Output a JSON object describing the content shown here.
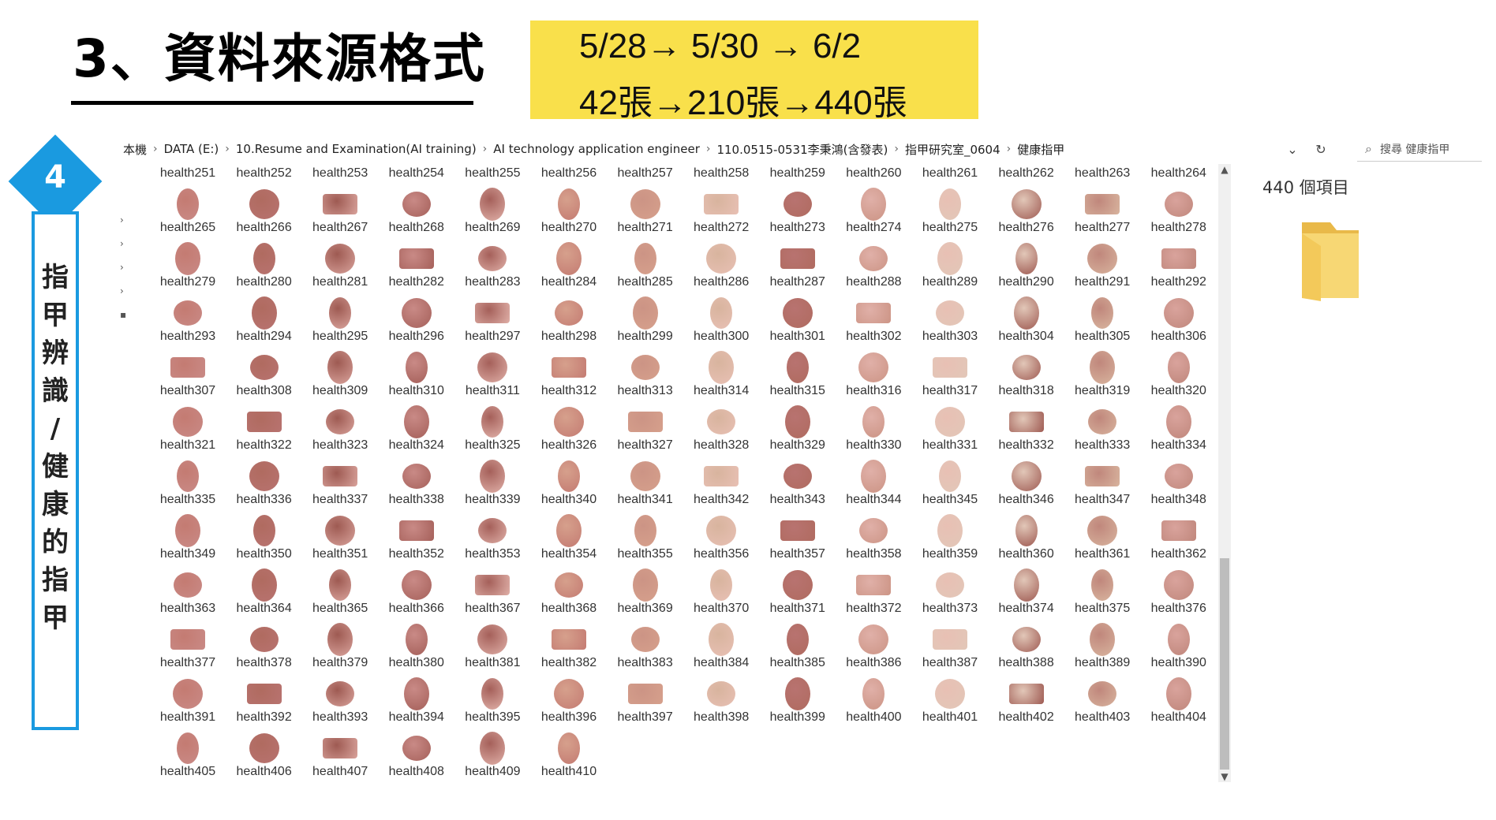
{
  "slide": {
    "title": "3、資料來源格式",
    "timeline_line1": "5/28→ 5/30 → 6/2",
    "timeline_line2": "42張→210張→440張",
    "step_number": "4",
    "vertical_label": [
      "指",
      "甲",
      "辨",
      "識",
      "/",
      "健",
      "康",
      "的",
      "指",
      "甲"
    ]
  },
  "explorer": {
    "breadcrumb": [
      "本機",
      "DATA (E:)",
      "10.Resume and Examination(AI training)",
      "AI technology application engineer",
      "110.0515-0531李秉鴻(含發表)",
      "指甲研究室_0604",
      "健康指甲"
    ],
    "search_placeholder": "搜尋 健康指甲",
    "item_count": "440 個項目",
    "files": [
      "health251",
      "health252",
      "health253",
      "health254",
      "health255",
      "health256",
      "health257",
      "health258",
      "health259",
      "health260",
      "health261",
      "health262",
      "health263",
      "health264",
      "health265",
      "health266",
      "health267",
      "health268",
      "health269",
      "health270",
      "health271",
      "health272",
      "health273",
      "health274",
      "health275",
      "health276",
      "health277",
      "health278",
      "health279",
      "health280",
      "health281",
      "health282",
      "health283",
      "health284",
      "health285",
      "health286",
      "health287",
      "health288",
      "health289",
      "health290",
      "health291",
      "health292",
      "health293",
      "health294",
      "health295",
      "health296",
      "health297",
      "health298",
      "health299",
      "health300",
      "health301",
      "health302",
      "health303",
      "health304",
      "health305",
      "health306",
      "health307",
      "health308",
      "health309",
      "health310",
      "health311",
      "health312",
      "health313",
      "health314",
      "health315",
      "health316",
      "health317",
      "health318",
      "health319",
      "health320",
      "health321",
      "health322",
      "health323",
      "health324",
      "health325",
      "health326",
      "health327",
      "health328",
      "health329",
      "health330",
      "health331",
      "health332",
      "health333",
      "health334",
      "health335",
      "health336",
      "health337",
      "health338",
      "health339",
      "health340",
      "health341",
      "health342",
      "health343",
      "health344",
      "health345",
      "health346",
      "health347",
      "health348",
      "health349",
      "health350",
      "health351",
      "health352",
      "health353",
      "health354",
      "health355",
      "health356",
      "health357",
      "health358",
      "health359",
      "health360",
      "health361",
      "health362",
      "health363",
      "health364",
      "health365",
      "health366",
      "health367",
      "health368",
      "health369",
      "health370",
      "health371",
      "health372",
      "health373",
      "health374",
      "health375",
      "health376",
      "health377",
      "health378",
      "health379",
      "health380",
      "health381",
      "health382",
      "health383",
      "health384",
      "health385",
      "health386",
      "health387",
      "health388",
      "health389",
      "health390",
      "health391",
      "health392",
      "health393",
      "health394",
      "health395",
      "health396",
      "health397",
      "health398",
      "health399",
      "health400",
      "health401",
      "health402",
      "health403",
      "health404",
      "health405",
      "health406",
      "health407",
      "health408",
      "health409",
      "health410"
    ]
  },
  "colors": {
    "accent_blue": "#1a9ae0",
    "highlight_yellow": "#f9e04b",
    "nail_palette": [
      "#c98a86",
      "#b87370",
      "#d9a39c",
      "#a5605a",
      "#e0b0a8",
      "#c47b72",
      "#d6a08c",
      "#e8c0b4",
      "#b06b60",
      "#cc9485",
      "#e2c7b8",
      "#9e5a52",
      "#d8b49e",
      "#c0877c"
    ]
  }
}
